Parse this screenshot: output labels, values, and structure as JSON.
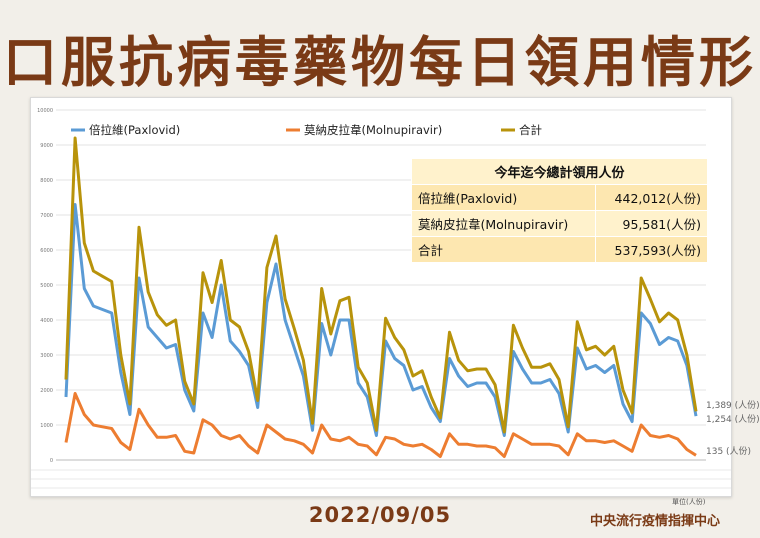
{
  "page": {
    "title": "口服抗病毒藥物每日領用情形",
    "date": "2022/09/05",
    "org": "中央流行疫情指揮中心",
    "unit": "單位(人份)"
  },
  "summary": {
    "header": "今年迄今總計領用人份",
    "rows": [
      {
        "label": "倍拉維(Paxlovid)",
        "value": "442,012(人份)"
      },
      {
        "label": "莫納皮拉韋(Molnupiravir)",
        "value": "95,581(人份)"
      },
      {
        "label": "合計",
        "value": "537,593(人份)"
      }
    ]
  },
  "end_labels": {
    "total": "1,389 (人份)",
    "paxlovid": "1,254 (人份)",
    "molnupiravir": "135 (人份)"
  },
  "colors": {
    "paxlovid": "#5b9bd5",
    "molnupiravir": "#ed7d31",
    "total": "#b8930b",
    "title": "#7a3a16"
  },
  "chart_data": {
    "type": "line",
    "ylim": [
      0,
      10000
    ],
    "yticks": [
      0,
      1000,
      2000,
      3000,
      4000,
      5000,
      6000,
      7000,
      8000,
      9000,
      10000
    ],
    "grid": true,
    "legend_position": "top",
    "series": [
      {
        "name": "倍拉維(Paxlovid)",
        "values": [
          1800,
          7300,
          4900,
          4400,
          4300,
          4200,
          2500,
          1300,
          5200,
          3800,
          3500,
          3200,
          3300,
          2000,
          1400,
          4200,
          3500,
          5000,
          3400,
          3100,
          2700,
          1500,
          4500,
          5600,
          4000,
          3200,
          2400,
          850,
          3900,
          3000,
          4000,
          4000,
          2200,
          1800,
          700,
          3400,
          2900,
          2700,
          2000,
          2100,
          1500,
          1100,
          2900,
          2400,
          2100,
          2200,
          2200,
          1800,
          700,
          3100,
          2600,
          2200,
          2200,
          2300,
          1900,
          800,
          3200,
          2600,
          2700,
          2500,
          2700,
          1600,
          1100,
          4200,
          3900,
          3300,
          3500,
          3400,
          2700,
          1254
        ]
      },
      {
        "name": "莫納皮拉韋(Molnupiravir)",
        "values": [
          500,
          1900,
          1300,
          1000,
          950,
          900,
          500,
          300,
          1450,
          1000,
          650,
          650,
          700,
          250,
          200,
          1150,
          1000,
          700,
          600,
          700,
          400,
          200,
          1000,
          800,
          600,
          550,
          450,
          200,
          1000,
          600,
          550,
          650,
          450,
          400,
          150,
          650,
          600,
          450,
          400,
          450,
          300,
          100,
          750,
          450,
          450,
          400,
          400,
          350,
          100,
          750,
          600,
          450,
          450,
          450,
          400,
          150,
          750,
          550,
          550,
          500,
          550,
          400,
          250,
          1000,
          700,
          650,
          700,
          600,
          300,
          135
        ]
      },
      {
        "name": "合計",
        "values": [
          2300,
          9200,
          6200,
          5400,
          5250,
          5100,
          3000,
          1600,
          6650,
          4800,
          4150,
          3850,
          4000,
          2250,
          1600,
          5350,
          4500,
          5700,
          4000,
          3800,
          3100,
          1700,
          5500,
          6400,
          4600,
          3750,
          2850,
          1050,
          4900,
          3600,
          4550,
          4650,
          2650,
          2200,
          850,
          4050,
          3500,
          3150,
          2400,
          2550,
          1800,
          1200,
          3650,
          2850,
          2550,
          2600,
          2600,
          2150,
          800,
          3850,
          3200,
          2650,
          2650,
          2750,
          2300,
          950,
          3950,
          3150,
          3250,
          3000,
          3250,
          2000,
          1350,
          5200,
          4600,
          3950,
          4200,
          4000,
          3000,
          1389
        ]
      }
    ]
  }
}
